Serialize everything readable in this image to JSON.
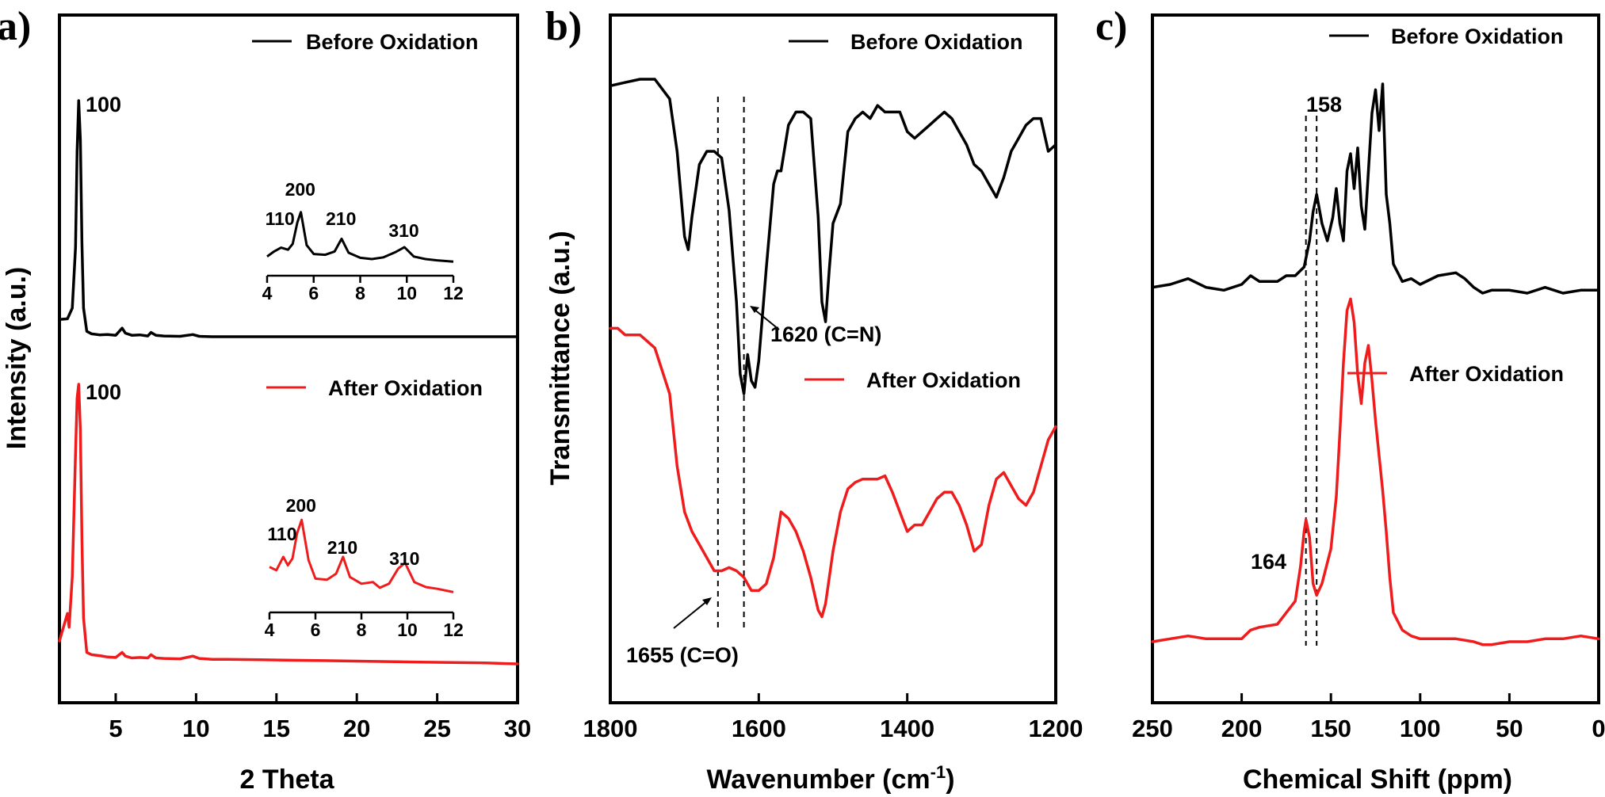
{
  "colors": {
    "before": "#000000",
    "after": "#ee1c1c",
    "axis": "#000000"
  },
  "chart_data": [
    {
      "panel_label": "a)",
      "type": "line",
      "title": "",
      "xlabel": "2 Theta",
      "ylabel": "Intensity (a.u.)",
      "xlim": [
        1.5,
        30
      ],
      "x_ticks": [
        5,
        10,
        15,
        20,
        25,
        30
      ],
      "x_tick_labels": [
        "5",
        "10",
        "15",
        "20",
        "25",
        "30"
      ],
      "legend": [
        "Before Oxidation",
        "After Oxidation"
      ],
      "peak_labels": [
        {
          "text": "100",
          "series": "Before Oxidation",
          "x": 2.7
        },
        {
          "text": "100",
          "series": "After Oxidation",
          "x": 2.7
        }
      ],
      "series": [
        {
          "name": "Before Oxidation",
          "x": [
            1.5,
            2.0,
            2.3,
            2.5,
            2.6,
            2.7,
            2.8,
            2.9,
            3.0,
            3.2,
            3.5,
            4.0,
            4.5,
            5.0,
            5.4,
            5.6,
            6.0,
            6.5,
            7.0,
            7.2,
            7.5,
            8.0,
            9.0,
            9.8,
            10.2,
            11,
            12,
            14,
            16,
            18,
            20,
            22,
            24,
            26,
            28,
            30
          ],
          "y": [
            0.88,
            0.9,
            1.2,
            2.9,
            5.6,
            7.0,
            5.9,
            3.0,
            1.2,
            0.55,
            0.48,
            0.45,
            0.46,
            0.44,
            0.64,
            0.5,
            0.44,
            0.45,
            0.42,
            0.52,
            0.44,
            0.42,
            0.41,
            0.46,
            0.41,
            0.4,
            0.4,
            0.4,
            0.4,
            0.4,
            0.4,
            0.4,
            0.4,
            0.4,
            0.4,
            0.4
          ]
        },
        {
          "name": "After Oxidation",
          "x": [
            1.5,
            2.0,
            2.1,
            2.3,
            2.5,
            2.6,
            2.7,
            2.8,
            2.9,
            3.0,
            3.2,
            3.5,
            4.0,
            4.5,
            5.0,
            5.4,
            5.6,
            6.0,
            6.5,
            7.0,
            7.2,
            7.5,
            8.0,
            9.0,
            9.8,
            10.2,
            11,
            12,
            14,
            16,
            18,
            20,
            22,
            24,
            26,
            28,
            30
          ],
          "y": [
            0.8,
            1.4,
            1.1,
            2.2,
            4.9,
            6.1,
            6.4,
            5.4,
            3.0,
            1.3,
            0.55,
            0.5,
            0.48,
            0.45,
            0.44,
            0.55,
            0.47,
            0.43,
            0.44,
            0.43,
            0.5,
            0.43,
            0.42,
            0.41,
            0.47,
            0.42,
            0.4,
            0.4,
            0.39,
            0.38,
            0.37,
            0.36,
            0.35,
            0.34,
            0.33,
            0.32,
            0.3
          ]
        }
      ],
      "insets": [
        {
          "series": "Before Oxidation",
          "xlim": [
            4,
            12
          ],
          "x_ticks": [
            4,
            6,
            8,
            10,
            12
          ],
          "x": [
            4.0,
            4.3,
            4.6,
            4.9,
            5.1,
            5.3,
            5.45,
            5.7,
            6.0,
            6.5,
            6.9,
            7.2,
            7.5,
            8.0,
            8.5,
            9.0,
            9.5,
            9.9,
            10.3,
            10.8,
            11.3,
            12.0
          ],
          "y": [
            0.35,
            0.55,
            0.7,
            0.62,
            0.85,
            1.7,
            2.1,
            0.8,
            0.45,
            0.42,
            0.55,
            1.05,
            0.5,
            0.3,
            0.25,
            0.32,
            0.52,
            0.72,
            0.35,
            0.25,
            0.2,
            0.15
          ],
          "peak_labels": [
            {
              "text": "110",
              "x": 4.6
            },
            {
              "text": "200",
              "x": 5.45
            },
            {
              "text": "210",
              "x": 7.2
            },
            {
              "text": "310",
              "x": 9.9
            }
          ]
        },
        {
          "series": "After Oxidation",
          "xlim": [
            4,
            12
          ],
          "x_ticks": [
            4,
            6,
            8,
            10,
            12
          ],
          "x": [
            4.0,
            4.3,
            4.6,
            4.8,
            5.0,
            5.2,
            5.4,
            5.7,
            6.0,
            6.5,
            6.9,
            7.2,
            7.5,
            8.0,
            8.5,
            8.8,
            9.2,
            9.6,
            9.9,
            10.3,
            10.8,
            11.3,
            12.0
          ],
          "y": [
            1.0,
            0.9,
            1.3,
            1.05,
            1.25,
            2.0,
            2.4,
            1.2,
            0.65,
            0.62,
            0.8,
            1.3,
            0.7,
            0.5,
            0.55,
            0.38,
            0.5,
            0.95,
            1.12,
            0.55,
            0.4,
            0.35,
            0.25
          ],
          "peak_labels": [
            {
              "text": "110",
              "x": 4.6
            },
            {
              "text": "200",
              "x": 5.4
            },
            {
              "text": "210",
              "x": 7.2
            },
            {
              "text": "310",
              "x": 9.9
            }
          ]
        }
      ]
    },
    {
      "panel_label": "b)",
      "type": "line",
      "title": "",
      "xlabel": "Wavenumber (cm",
      "xlabel_superscript": "-1",
      "xlabel_suffix": ")",
      "ylabel": "Transmittance (a.u.)",
      "xlim": [
        1800,
        1200
      ],
      "x_ticks": [
        1800,
        1600,
        1400,
        1200
      ],
      "x_tick_labels": [
        "1800",
        "1600",
        "1400",
        "1200"
      ],
      "legend": [
        "Before Oxidation",
        "After Oxidation"
      ],
      "reference_lines": [
        1655,
        1620
      ],
      "annotations": [
        {
          "text": "1620 (C=N)",
          "x": 1620
        },
        {
          "text": "1655 (C=O)",
          "x": 1655
        }
      ],
      "series": [
        {
          "name": "Before Oxidation",
          "x": [
            1800,
            1780,
            1760,
            1740,
            1720,
            1710,
            1700,
            1695,
            1690,
            1680,
            1670,
            1660,
            1650,
            1640,
            1630,
            1625,
            1620,
            1615,
            1610,
            1605,
            1600,
            1590,
            1580,
            1575,
            1570,
            1560,
            1550,
            1540,
            1530,
            1520,
            1515,
            1510,
            1505,
            1500,
            1490,
            1480,
            1470,
            1460,
            1450,
            1440,
            1430,
            1420,
            1410,
            1400,
            1390,
            1380,
            1370,
            1360,
            1350,
            1340,
            1330,
            1320,
            1310,
            1300,
            1290,
            1280,
            1270,
            1260,
            1250,
            1240,
            1230,
            1220,
            1210,
            1200
          ],
          "y": [
            9.3,
            9.35,
            9.4,
            9.4,
            9.1,
            8.3,
            7.0,
            6.8,
            7.3,
            8.1,
            8.3,
            8.3,
            8.2,
            7.4,
            6.0,
            4.9,
            4.6,
            5.2,
            4.8,
            4.7,
            5.1,
            6.5,
            7.8,
            8.0,
            8.0,
            8.7,
            8.9,
            8.9,
            8.8,
            7.3,
            6.0,
            5.7,
            6.5,
            7.2,
            7.5,
            8.6,
            8.8,
            8.9,
            8.8,
            9.0,
            8.9,
            8.9,
            8.9,
            8.6,
            8.5,
            8.6,
            8.7,
            8.8,
            8.9,
            8.8,
            8.6,
            8.4,
            8.1,
            8.0,
            7.8,
            7.6,
            7.9,
            8.3,
            8.5,
            8.7,
            8.8,
            8.8,
            8.3,
            8.4
          ]
        },
        {
          "name": "After Oxidation",
          "x": [
            1800,
            1790,
            1780,
            1760,
            1740,
            1720,
            1710,
            1700,
            1690,
            1680,
            1670,
            1660,
            1650,
            1640,
            1630,
            1620,
            1610,
            1600,
            1590,
            1580,
            1570,
            1560,
            1550,
            1540,
            1530,
            1520,
            1515,
            1510,
            1500,
            1490,
            1480,
            1470,
            1460,
            1450,
            1440,
            1430,
            1420,
            1410,
            1400,
            1390,
            1380,
            1370,
            1360,
            1350,
            1340,
            1330,
            1320,
            1310,
            1300,
            1290,
            1280,
            1270,
            1260,
            1250,
            1240,
            1230,
            1220,
            1210,
            1200
          ],
          "y": [
            5.6,
            5.6,
            5.5,
            5.5,
            5.3,
            4.6,
            3.5,
            2.8,
            2.5,
            2.3,
            2.1,
            1.9,
            1.9,
            1.95,
            1.9,
            1.8,
            1.6,
            1.6,
            1.7,
            2.1,
            2.8,
            2.7,
            2.5,
            2.2,
            1.8,
            1.3,
            1.2,
            1.4,
            2.2,
            2.8,
            3.15,
            3.25,
            3.3,
            3.3,
            3.3,
            3.35,
            3.1,
            2.8,
            2.5,
            2.6,
            2.6,
            2.8,
            3.0,
            3.1,
            3.1,
            2.9,
            2.6,
            2.2,
            2.3,
            2.9,
            3.3,
            3.4,
            3.2,
            3.0,
            2.9,
            3.1,
            3.5,
            3.9,
            4.1
          ]
        }
      ]
    },
    {
      "panel_label": "c)",
      "type": "line",
      "title": "",
      "xlabel": "Chemical Shift (ppm)",
      "ylabel": "",
      "xlim": [
        250,
        0
      ],
      "x_ticks": [
        250,
        200,
        150,
        100,
        50,
        0
      ],
      "x_tick_labels": [
        "250",
        "200",
        "150",
        "100",
        "50",
        "0"
      ],
      "legend": [
        "Before Oxidation",
        "After Oxidation"
      ],
      "reference_lines": [
        164,
        158
      ],
      "peak_labels": [
        {
          "text": "158",
          "series": "Before Oxidation",
          "x": 158
        },
        {
          "text": "164",
          "series": "After Oxidation",
          "x": 164
        }
      ],
      "series": [
        {
          "name": "Before Oxidation",
          "x": [
            250,
            240,
            230,
            220,
            210,
            200,
            195,
            190,
            180,
            175,
            170,
            165,
            162,
            160,
            158,
            155,
            152,
            149,
            147,
            145,
            143,
            141,
            139,
            137,
            135,
            133,
            131,
            129,
            127,
            125,
            123,
            121,
            119,
            117,
            115,
            110,
            105,
            100,
            90,
            80,
            75,
            70,
            65,
            60,
            50,
            40,
            30,
            20,
            10,
            0
          ],
          "y": [
            7.1,
            7.15,
            7.25,
            7.1,
            7.05,
            7.15,
            7.3,
            7.2,
            7.2,
            7.3,
            7.3,
            7.45,
            7.9,
            8.4,
            8.7,
            8.2,
            7.9,
            8.3,
            8.8,
            8.2,
            7.9,
            9.1,
            9.4,
            8.8,
            9.5,
            8.5,
            8.1,
            9.1,
            10.1,
            10.5,
            9.8,
            10.6,
            8.7,
            8.2,
            7.5,
            7.2,
            7.25,
            7.15,
            7.3,
            7.35,
            7.25,
            7.1,
            7.0,
            7.05,
            7.05,
            7.0,
            7.1,
            7.0,
            7.05,
            7.05
          ]
        },
        {
          "name": "After Oxidation",
          "x": [
            250,
            240,
            230,
            220,
            210,
            200,
            195,
            190,
            180,
            175,
            170,
            167,
            165,
            164,
            162,
            160,
            158,
            155,
            150,
            147,
            145,
            143,
            141,
            139,
            137,
            135,
            133,
            131,
            129,
            127,
            125,
            123,
            121,
            119,
            117,
            115,
            110,
            105,
            100,
            90,
            80,
            70,
            65,
            60,
            50,
            40,
            30,
            20,
            10,
            0
          ],
          "y": [
            1.0,
            1.05,
            1.1,
            1.05,
            1.05,
            1.05,
            1.2,
            1.25,
            1.3,
            1.5,
            1.7,
            2.3,
            2.9,
            3.1,
            2.8,
            2.0,
            1.8,
            2.0,
            2.6,
            3.5,
            4.6,
            5.8,
            6.7,
            6.9,
            6.5,
            5.6,
            5.1,
            5.8,
            6.1,
            5.5,
            4.8,
            4.2,
            3.6,
            2.9,
            2.1,
            1.5,
            1.2,
            1.1,
            1.05,
            1.05,
            1.05,
            1.0,
            0.95,
            0.95,
            1.0,
            1.0,
            1.05,
            1.05,
            1.1,
            1.05
          ]
        }
      ]
    }
  ]
}
